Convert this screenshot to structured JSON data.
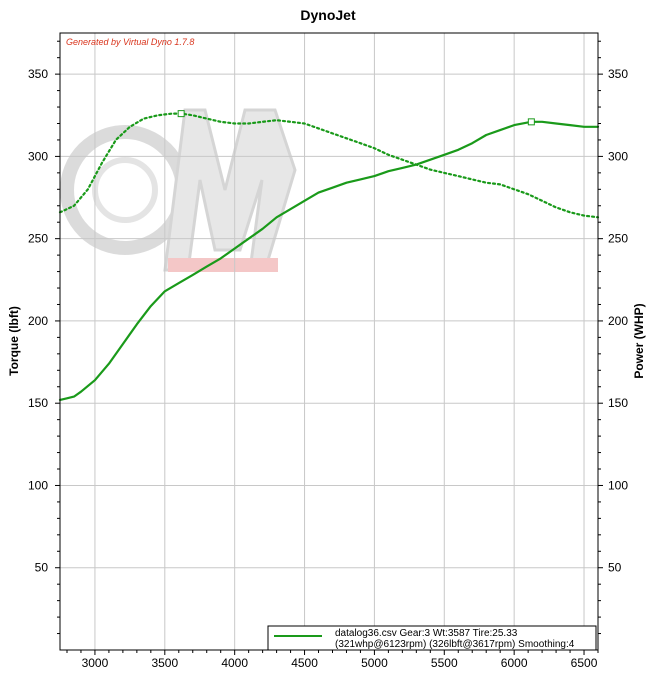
{
  "chart_data": {
    "type": "line",
    "title": "DynoJet",
    "watermark": "Generated by Virtual Dyno 1.7.8",
    "ylabel_left": "Torque (lbft)",
    "ylabel_right": "Power (WHP)",
    "xlabel": "",
    "xlim": [
      2750,
      6600
    ],
    "ylim": [
      0,
      375
    ],
    "x_ticks": [
      3000,
      3500,
      4000,
      4500,
      5000,
      5500,
      6000,
      6500
    ],
    "y_ticks": [
      50,
      100,
      150,
      200,
      250,
      300,
      350
    ],
    "grid": true,
    "legend": {
      "position": "bottom-right",
      "line1": "datalog36.csv Gear:3 Wt:3587 Tire:25.33",
      "line2": "(321whp@6123rpm) (326lbft@3617rpm) Smoothing:4"
    },
    "series": [
      {
        "style": "dotted",
        "color": "#1a9a1a",
        "peak": [
          3617,
          326
        ],
        "points": [
          [
            2750,
            266
          ],
          [
            2850,
            270
          ],
          [
            2950,
            280
          ],
          [
            3050,
            296
          ],
          [
            3150,
            310
          ],
          [
            3250,
            318
          ],
          [
            3350,
            323
          ],
          [
            3450,
            325
          ],
          [
            3550,
            326
          ],
          [
            3617,
            326
          ],
          [
            3700,
            325
          ],
          [
            3800,
            323
          ],
          [
            3900,
            321
          ],
          [
            4000,
            320
          ],
          [
            4100,
            320
          ],
          [
            4200,
            321
          ],
          [
            4300,
            322
          ],
          [
            4400,
            321
          ],
          [
            4500,
            320
          ],
          [
            4600,
            317
          ],
          [
            4700,
            314
          ],
          [
            4800,
            311
          ],
          [
            4900,
            308
          ],
          [
            5000,
            305
          ],
          [
            5100,
            301
          ],
          [
            5200,
            298
          ],
          [
            5300,
            295
          ],
          [
            5400,
            292
          ],
          [
            5500,
            290
          ],
          [
            5600,
            288
          ],
          [
            5700,
            286
          ],
          [
            5800,
            284
          ],
          [
            5900,
            283
          ],
          [
            6000,
            280
          ],
          [
            6100,
            277
          ],
          [
            6200,
            273
          ],
          [
            6300,
            269
          ],
          [
            6400,
            266
          ],
          [
            6500,
            264
          ],
          [
            6600,
            263
          ]
        ]
      },
      {
        "style": "solid",
        "color": "#1a9a1a",
        "peak": [
          6123,
          321
        ],
        "points": [
          [
            2750,
            152
          ],
          [
            2800,
            153
          ],
          [
            2850,
            154
          ],
          [
            2900,
            157
          ],
          [
            3000,
            164
          ],
          [
            3100,
            174
          ],
          [
            3200,
            186
          ],
          [
            3300,
            198
          ],
          [
            3400,
            209
          ],
          [
            3500,
            218
          ],
          [
            3600,
            223
          ],
          [
            3700,
            228
          ],
          [
            3800,
            233
          ],
          [
            3900,
            238
          ],
          [
            4000,
            244
          ],
          [
            4100,
            250
          ],
          [
            4200,
            256
          ],
          [
            4300,
            263
          ],
          [
            4400,
            268
          ],
          [
            4500,
            273
          ],
          [
            4600,
            278
          ],
          [
            4700,
            281
          ],
          [
            4800,
            284
          ],
          [
            4900,
            286
          ],
          [
            5000,
            288
          ],
          [
            5100,
            291
          ],
          [
            5200,
            293
          ],
          [
            5300,
            295
          ],
          [
            5400,
            298
          ],
          [
            5500,
            301
          ],
          [
            5600,
            304
          ],
          [
            5700,
            308
          ],
          [
            5800,
            313
          ],
          [
            5900,
            316
          ],
          [
            6000,
            319
          ],
          [
            6123,
            321
          ],
          [
            6200,
            321
          ],
          [
            6300,
            320
          ],
          [
            6400,
            319
          ],
          [
            6500,
            318
          ],
          [
            6600,
            318
          ]
        ]
      }
    ]
  }
}
